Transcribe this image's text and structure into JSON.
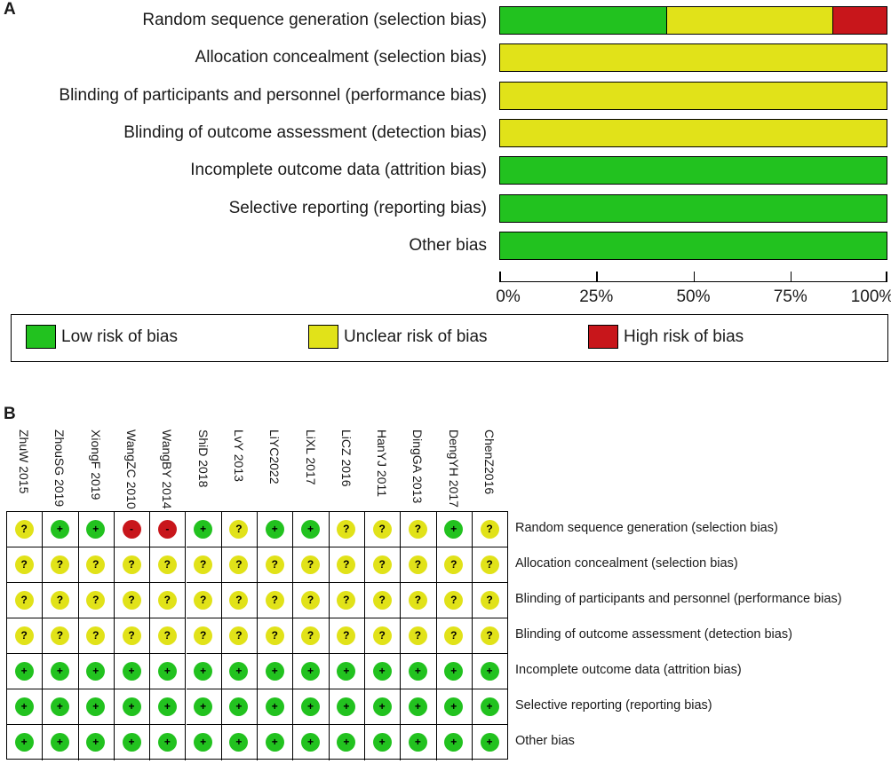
{
  "panel_a_label": "A",
  "panel_b_label": "B",
  "chart_data": [
    {
      "type": "bar",
      "orientation": "horizontal-stacked-100",
      "categories": [
        "Random sequence generation (selection bias)",
        "Allocation concealment (selection bias)",
        "Blinding of participants and personnel (performance bias)",
        "Blinding of outcome assessment (detection bias)",
        "Incomplete outcome data (attrition bias)",
        "Selective reporting (reporting bias)",
        "Other bias"
      ],
      "series": [
        {
          "name": "Low risk of bias",
          "color": "#22c21f",
          "values": [
            43,
            0,
            0,
            0,
            100,
            100,
            100
          ]
        },
        {
          "name": "Unclear risk of bias",
          "color": "#e1e219",
          "values": [
            43,
            100,
            100,
            100,
            0,
            0,
            0
          ]
        },
        {
          "name": "High risk of bias",
          "color": "#c8161b",
          "values": [
            14,
            0,
            0,
            0,
            0,
            0,
            0
          ]
        }
      ],
      "xlim": [
        0,
        100
      ],
      "xticks": [
        "0%",
        "25%",
        "50%",
        "75%",
        "100%"
      ],
      "legend": [
        "Low risk of bias",
        "Unclear risk of bias",
        "High risk of bias"
      ],
      "legend_position": "bottom"
    },
    {
      "type": "table",
      "studies": [
        "ZhuW 2015",
        "ZhouSG 2019",
        "XiongF 2019",
        "WangZC 2010",
        "WangBY 2014",
        "ShiD 2018",
        "LvY 2013",
        "LiYC2022",
        "LiXL 2017",
        "LiCZ 2016",
        "HanYJ 2011",
        "DingGA 2013",
        "DengYH 2017",
        "ChenZ2016"
      ],
      "domains": [
        "Random sequence generation (selection bias)",
        "Allocation concealment (selection bias)",
        "Blinding of participants and personnel (performance bias)",
        "Blinding of outcome assessment (detection bias)",
        "Incomplete outcome data (attrition bias)",
        "Selective reporting (reporting bias)",
        "Other bias"
      ],
      "judgements": [
        [
          "?",
          "+",
          "+",
          "-",
          "-",
          "+",
          "?",
          "+",
          "+",
          "?",
          "?",
          "?",
          "+",
          "?"
        ],
        [
          "?",
          "?",
          "?",
          "?",
          "?",
          "?",
          "?",
          "?",
          "?",
          "?",
          "?",
          "?",
          "?",
          "?"
        ],
        [
          "?",
          "?",
          "?",
          "?",
          "?",
          "?",
          "?",
          "?",
          "?",
          "?",
          "?",
          "?",
          "?",
          "?"
        ],
        [
          "?",
          "?",
          "?",
          "?",
          "?",
          "?",
          "?",
          "?",
          "?",
          "?",
          "?",
          "?",
          "?",
          "?"
        ],
        [
          "+",
          "+",
          "+",
          "+",
          "+",
          "+",
          "+",
          "+",
          "+",
          "+",
          "+",
          "+",
          "+",
          "+"
        ],
        [
          "+",
          "+",
          "+",
          "+",
          "+",
          "+",
          "+",
          "+",
          "+",
          "+",
          "+",
          "+",
          "+",
          "+"
        ],
        [
          "+",
          "+",
          "+",
          "+",
          "+",
          "+",
          "+",
          "+",
          "+",
          "+",
          "+",
          "+",
          "+",
          "+"
        ]
      ],
      "symbol_colors": {
        "+": "#22c21f",
        "?": "#e1e219",
        "-": "#c8161b"
      }
    }
  ]
}
